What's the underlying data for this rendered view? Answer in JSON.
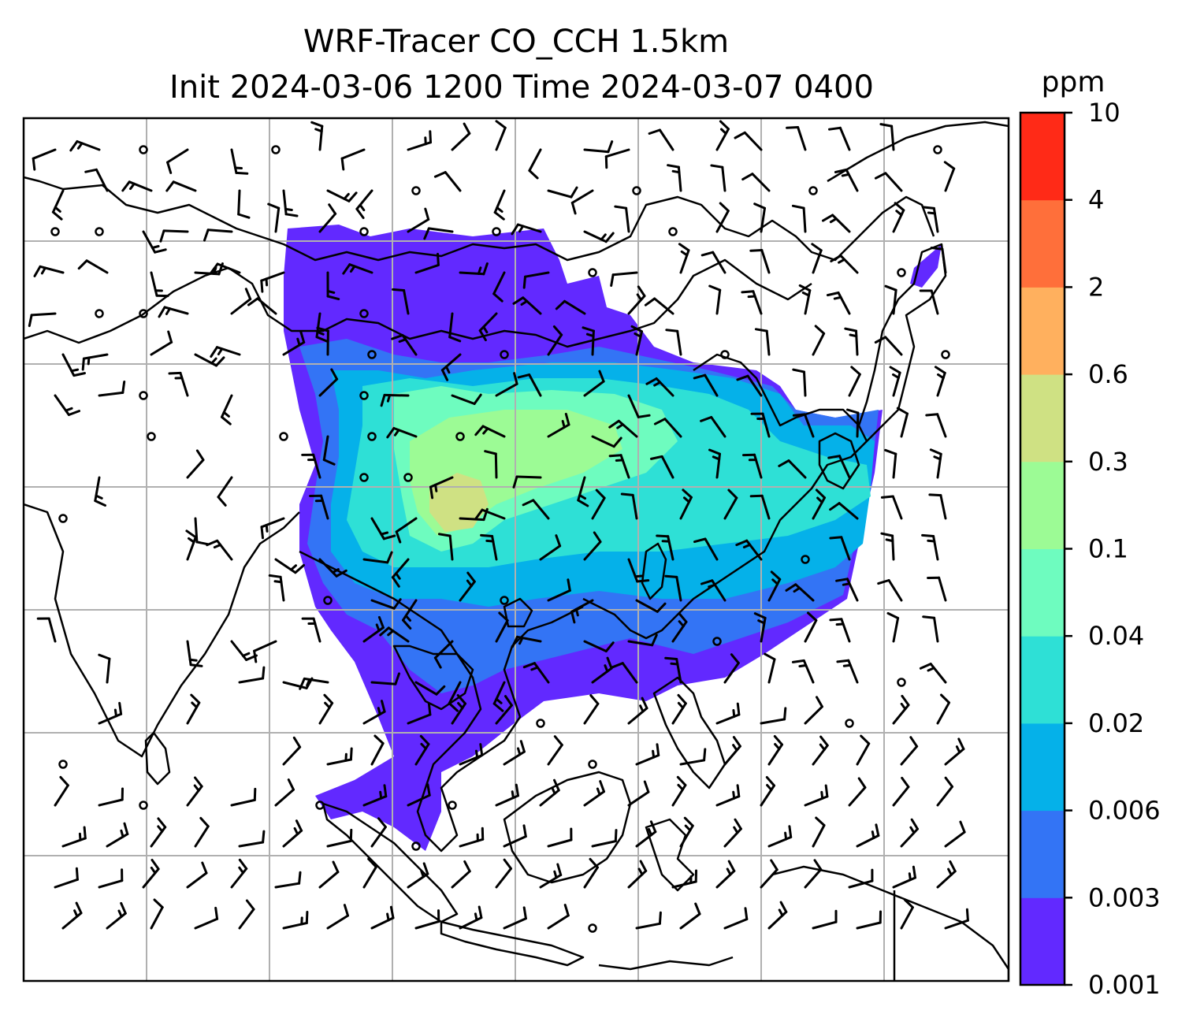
{
  "figure": {
    "title_line1": "WRF-Tracer CO_CCH 1.5km",
    "title_line2": "Init 2024-03-06 1200 Time 2024-03-07 0400"
  },
  "colorbar": {
    "units": "ppm",
    "levels": [
      "0.001",
      "0.003",
      "0.006",
      "0.02",
      "0.04",
      "0.1",
      "0.3",
      "0.6",
      "2",
      "4",
      "10"
    ],
    "colors": [
      "#6229ff",
      "#3374f5",
      "#05b1e9",
      "#2ee0d6",
      "#6efcbf",
      "#9cfb95",
      "#cfe183",
      "#ffb05e",
      "#ff6f3a",
      "#ff2a17"
    ]
  },
  "map": {
    "gridline_color": "#b0b0b0",
    "coastline_color": "#000000",
    "tracer_field": "CO_CCH",
    "level": "1.5km",
    "overlay": "wind-barbs"
  }
}
